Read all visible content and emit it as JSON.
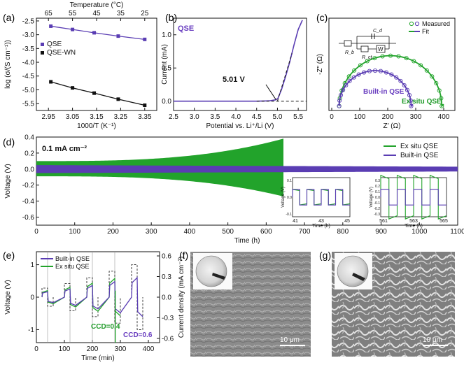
{
  "colors": {
    "purple": "#5a3db3",
    "green": "#22a32b",
    "black": "#111111",
    "accent_text_purple": "#6a3fc0",
    "accent_text_green": "#1e9a27"
  },
  "panels": {
    "a": {
      "tag": "(a)"
    },
    "b": {
      "tag": "(b)"
    },
    "c": {
      "tag": "(c)"
    },
    "d": {
      "tag": "(d)"
    },
    "e": {
      "tag": "(e)"
    },
    "f": {
      "tag": "(f)",
      "scalebar": "10 μm"
    },
    "g": {
      "tag": "(g)",
      "scalebar": "10 μm"
    }
  },
  "chart_data": [
    {
      "id": "a",
      "type": "scatter",
      "title": "",
      "top_axis_label": "Temperature (°C)",
      "top_ticks": [
        "65",
        "55",
        "45",
        "35",
        "25"
      ],
      "xlabel": "1000/T (K⁻¹)",
      "ylabel": "log (σ/(S cm⁻¹))",
      "xlim": [
        2.9,
        3.4
      ],
      "ylim": [
        -5.75,
        -2.4
      ],
      "xticks": [
        "2.95",
        "3.05",
        "3.15",
        "3.25",
        "3.35"
      ],
      "yticks": [
        "-2.5",
        "-3.0",
        "-3.5",
        "-4.0",
        "-4.5",
        "-5.0",
        "-5.5"
      ],
      "legend": "top-right",
      "series": [
        {
          "name": "QSE",
          "x": [
            2.96,
            3.05,
            3.14,
            3.24,
            3.35
          ],
          "y": [
            -2.69,
            -2.81,
            -2.93,
            -3.05,
            -3.17
          ]
        },
        {
          "name": "QSE-WN",
          "x": [
            2.96,
            3.05,
            3.14,
            3.24,
            3.35
          ],
          "y": [
            -4.71,
            -4.93,
            -5.12,
            -5.34,
            -5.56
          ]
        }
      ]
    },
    {
      "id": "b",
      "type": "line",
      "xlabel": "Potential vs. Li⁺/Li (V)",
      "ylabel": "Current (mA)",
      "xlim": [
        2.5,
        5.7
      ],
      "ylim": [
        -0.14,
        1.25
      ],
      "xticks": [
        "2.5",
        "3.0",
        "3.5",
        "4.0",
        "4.5",
        "5.0",
        "5.5"
      ],
      "yticks": [
        "0.0",
        "0.5",
        "1.0"
      ],
      "series_label": "QSE",
      "annotation": "5.01 V",
      "series": [
        {
          "name": "QSE",
          "x": [
            2.5,
            3.0,
            3.5,
            4.0,
            4.5,
            4.8,
            4.95,
            5.01,
            5.1,
            5.2,
            5.3,
            5.4,
            5.5,
            5.6
          ],
          "y": [
            0.0,
            0.0,
            0.0,
            0.0,
            0.0,
            0.005,
            0.02,
            0.04,
            0.18,
            0.38,
            0.6,
            0.85,
            1.08,
            1.22
          ]
        }
      ]
    },
    {
      "id": "c",
      "type": "scatter",
      "xlabel": "Z′ (Ω)",
      "ylabel": "-Z″ (Ω)",
      "xlim": [
        -10,
        440
      ],
      "ylim": [
        -10,
        200
      ],
      "xticks": [
        "0",
        "100",
        "200",
        "300",
        "400"
      ],
      "legend": "top-right",
      "legend_items": [
        "Measured",
        "Fit"
      ],
      "circuit_labels": [
        "R_b",
        "C_d",
        "R_ct",
        "W"
      ],
      "labels": [
        "Built-in QSE",
        "Ex situ QSE"
      ],
      "series": [
        {
          "name": "Ex situ QSE",
          "center": 210,
          "radius": 185,
          "start": 25,
          "tail": 400
        },
        {
          "name": "Built-in QSE",
          "center": 155,
          "radius": 130,
          "start": 25,
          "tail": 290
        }
      ]
    },
    {
      "id": "d",
      "type": "line",
      "xlabel": "Time (h)",
      "ylabel": "Voltage (V)",
      "xlim": [
        0,
        1100
      ],
      "ylim": [
        -0.7,
        0.4
      ],
      "xticks": [
        "0",
        "100",
        "200",
        "300",
        "400",
        "500",
        "600",
        "700",
        "800",
        "900",
        "1000",
        "1100"
      ],
      "yticks": [
        "0.4",
        "0.2",
        "0.0",
        "-0.2",
        "-0.4",
        "-0.6"
      ],
      "annotation": "0.1 mA cm⁻²",
      "legend": "top-right",
      "series": [
        {
          "name": "Ex situ QSE",
          "end_time": 645,
          "amp_start": 0.1,
          "amp_end": 0.38
        },
        {
          "name": "Built-in QSE",
          "end_time": 1100,
          "amp_start": 0.05,
          "amp_end": 0.03
        }
      ],
      "insets": [
        {
          "xticks": [
            "41",
            "43",
            "45"
          ],
          "xlabel": "Time (h)",
          "ylabel": "Voltage (V)",
          "yticks": [
            "0.1",
            "0.0",
            "-0.1"
          ]
        },
        {
          "xticks": [
            "561",
            "563",
            "565"
          ],
          "xlabel": "Time (h)",
          "ylabel": "Voltage (V)",
          "yticks": [
            "0.3",
            "0.2",
            "0.1",
            "0.0",
            "-0.1",
            "-0.2",
            "-0.3"
          ]
        }
      ]
    },
    {
      "id": "e",
      "type": "line",
      "xlabel": "Time (min)",
      "ylabel": "Voltage (V)",
      "ylabel_right": "Current density (mA cm⁻²)",
      "xlim": [
        0,
        440
      ],
      "ylim": [
        -1.4,
        1.4
      ],
      "xticks": [
        "0",
        "100",
        "200",
        "300",
        "400"
      ],
      "yticks": [
        "1",
        "0",
        "-1"
      ],
      "yticks_right": [
        "0.6",
        "0.3",
        "0.0",
        "-0.3",
        "-0.6"
      ],
      "legend": "top-left",
      "annotations": [
        "CCD=0.4",
        "CCD=0.6"
      ],
      "series": [
        {
          "name": "Built-in QSE"
        },
        {
          "name": "Ex situ QSE"
        }
      ]
    }
  ]
}
